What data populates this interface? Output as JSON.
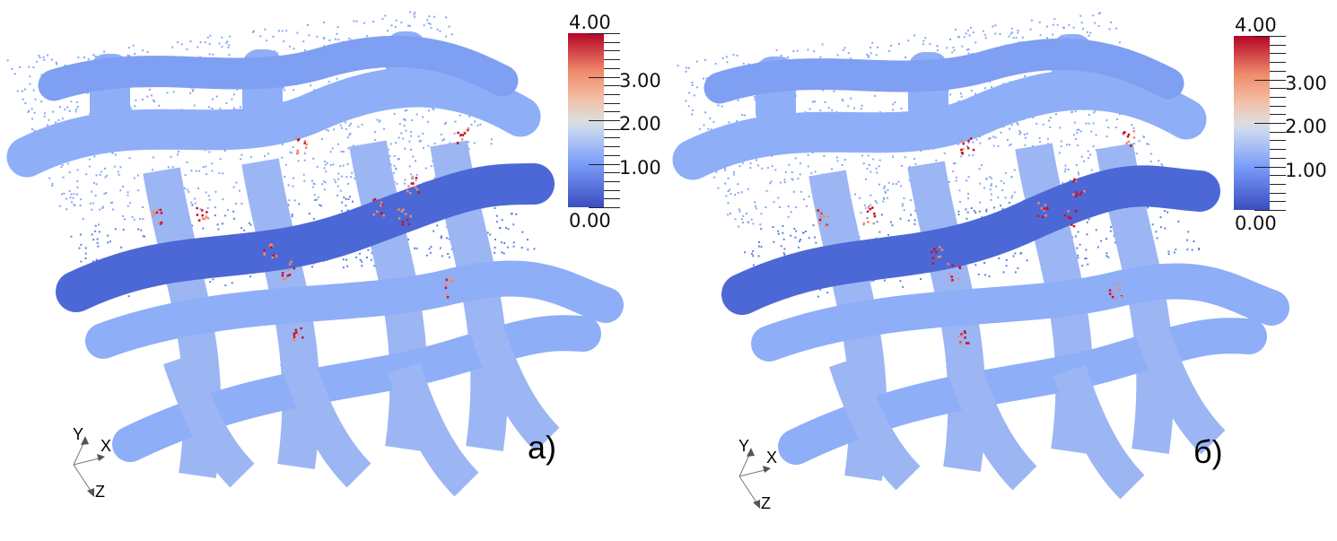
{
  "panels": [
    {
      "label": "а)",
      "colorbar": {
        "max_label": "4.00",
        "labels": [
          "3.00",
          "2.00",
          "1.00"
        ],
        "min_label": "0.00",
        "range": [
          0,
          4
        ],
        "colors": [
          "#3b4cc0",
          "#dddddd",
          "#b40426"
        ]
      },
      "axes": {
        "x": "X",
        "y": "Y",
        "z": "Z"
      }
    },
    {
      "label": "б)",
      "colorbar": {
        "max_label": "4.00",
        "labels": [
          "3.00",
          "2.00",
          "1.00"
        ],
        "min_label": "0.00",
        "range": [
          0,
          4
        ],
        "colors": [
          "#3b4cc0",
          "#dddddd",
          "#b40426"
        ]
      },
      "axes": {
        "x": "X",
        "y": "Y",
        "z": "Z"
      }
    }
  ]
}
